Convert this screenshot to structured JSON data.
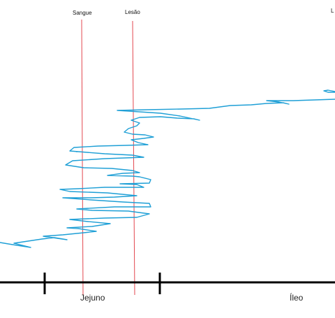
{
  "markers": {
    "blood": "Sangue",
    "lesion": "Lesão",
    "edge_cut": "L"
  },
  "segments": {
    "jejunum": "Jejuno",
    "ileum": "Íleo"
  },
  "colors": {
    "trace": "#1e9fd6",
    "marker_line": "#e3474f",
    "axis": "#000000"
  }
}
